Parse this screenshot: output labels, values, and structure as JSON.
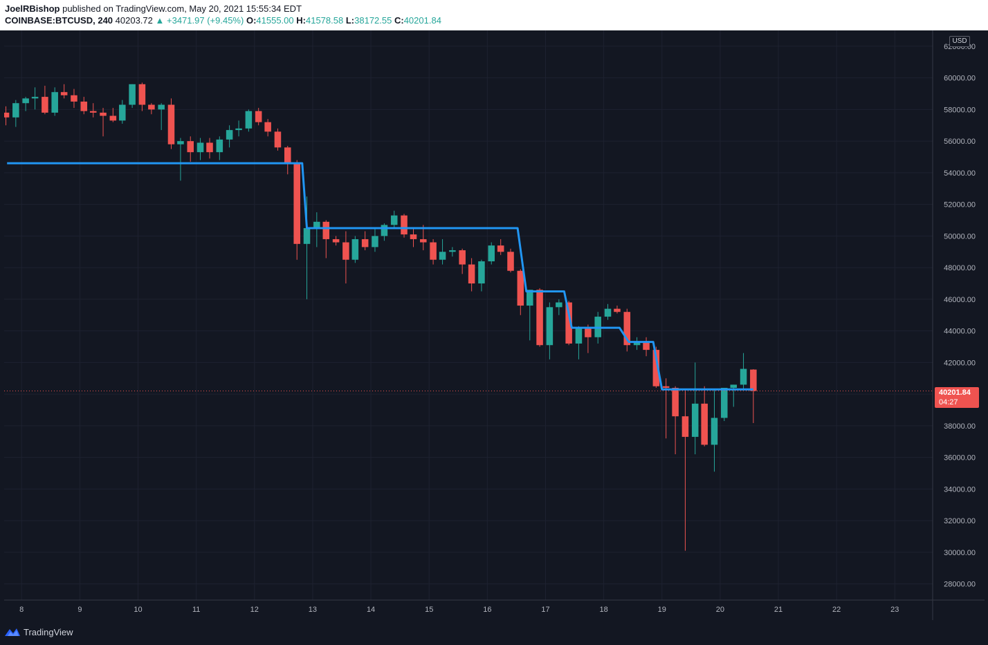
{
  "header": {
    "author": "JoelRBishop",
    "published_text": "published on TradingView.com, May 20, 2021 15:55:34 EDT",
    "symbol": "COINBASE:BTCUSD, 240",
    "last": "40203.72",
    "change": "+3471.97 (+9.45%)",
    "o_label": "O:",
    "o_value": "41555.00",
    "h_label": "H:",
    "h_value": "41578.58",
    "l_label": "L:",
    "l_value": "38172.55",
    "c_label": "C:",
    "c_value": "40201.84"
  },
  "axis": {
    "currency": "USD"
  },
  "price_tag": {
    "price": "40201.84",
    "countdown": "04:27"
  },
  "footer": {
    "brand": "TradingView"
  },
  "colors": {
    "background": "#131722",
    "grid": "#1e2230",
    "up": "#26a69a",
    "down": "#ef5350",
    "line": "#2196f3",
    "axis_text": "#b2b5be"
  },
  "chart_data": {
    "type": "candlestick",
    "title": "",
    "xlabel": "",
    "ylabel": "",
    "ylim": [
      26980,
      63000
    ],
    "y_ticks": [
      28000,
      30000,
      32000,
      34000,
      36000,
      38000,
      40000,
      42000,
      44000,
      46000,
      48000,
      50000,
      52000,
      54000,
      56000,
      58000,
      60000,
      62000
    ],
    "y_tick_labels": [
      "28000.00",
      "30000.00",
      "32000.00",
      "34000.00",
      "36000.00",
      "38000.00",
      "40000.00",
      "42000.00",
      "44000.00",
      "46000.00",
      "48000.00",
      "50000.00",
      "52000.00",
      "54000.00",
      "56000.00",
      "58000.00",
      "60000.00",
      "62000.00"
    ],
    "x_range_days": [
      7.7,
      23.65
    ],
    "x_ticks": [
      8,
      9,
      10,
      11,
      12,
      13,
      14,
      15,
      16,
      17,
      18,
      19,
      20,
      21,
      22,
      23
    ],
    "x_tick_labels": [
      "8",
      "9",
      "10",
      "11",
      "12",
      "13",
      "14",
      "15",
      "16",
      "17",
      "18",
      "19",
      "20",
      "21",
      "22",
      "23"
    ],
    "candle_interval_days": 0.1667,
    "candles": [
      [
        7.73,
        57800,
        58200,
        57000,
        57500
      ],
      [
        7.9,
        57500,
        58600,
        56900,
        58400
      ],
      [
        8.07,
        58400,
        58800,
        57900,
        58700
      ],
      [
        8.23,
        58700,
        59400,
        58000,
        58800
      ],
      [
        8.4,
        58800,
        59500,
        57700,
        57800
      ],
      [
        8.57,
        57800,
        59400,
        57600,
        59100
      ],
      [
        8.73,
        59100,
        59600,
        58700,
        58900
      ],
      [
        8.9,
        58900,
        59300,
        58100,
        58500
      ],
      [
        9.07,
        58500,
        58800,
        57700,
        57900
      ],
      [
        9.23,
        57900,
        58400,
        57500,
        57800
      ],
      [
        9.4,
        57800,
        58100,
        56300,
        57600
      ],
      [
        9.57,
        57600,
        58100,
        57200,
        57300
      ],
      [
        9.73,
        57300,
        58600,
        57100,
        58300
      ],
      [
        9.9,
        58300,
        59600,
        58100,
        59600
      ],
      [
        10.07,
        59600,
        59700,
        57900,
        58300
      ],
      [
        10.23,
        58300,
        58400,
        57700,
        58000
      ],
      [
        10.4,
        58000,
        58400,
        56700,
        58300
      ],
      [
        10.57,
        58300,
        58700,
        55500,
        55800
      ],
      [
        10.73,
        55800,
        56200,
        53500,
        56000
      ],
      [
        10.9,
        56000,
        56300,
        54700,
        55300
      ],
      [
        11.07,
        55300,
        56200,
        54800,
        55900
      ],
      [
        11.23,
        55900,
        56200,
        54900,
        55300
      ],
      [
        11.4,
        55300,
        56300,
        54800,
        56100
      ],
      [
        11.57,
        56100,
        57000,
        55600,
        56700
      ],
      [
        11.73,
        56700,
        57300,
        56300,
        56800
      ],
      [
        11.9,
        56800,
        58000,
        56600,
        57900
      ],
      [
        12.07,
        57900,
        58100,
        57000,
        57200
      ],
      [
        12.23,
        57200,
        57400,
        56300,
        56600
      ],
      [
        12.4,
        56600,
        56800,
        55400,
        55600
      ],
      [
        12.57,
        55600,
        55700,
        53900,
        54600
      ],
      [
        12.73,
        54600,
        54800,
        48500,
        49500
      ],
      [
        12.9,
        49500,
        52500,
        46000,
        50500
      ],
      [
        13.07,
        50500,
        51500,
        49300,
        50900
      ],
      [
        13.23,
        50900,
        51000,
        48600,
        49800
      ],
      [
        13.4,
        49800,
        50000,
        49400,
        49600
      ],
      [
        13.57,
        49600,
        50300,
        47000,
        48500
      ],
      [
        13.73,
        48500,
        50000,
        48300,
        49800
      ],
      [
        13.9,
        49800,
        50300,
        49100,
        49300
      ],
      [
        14.07,
        49300,
        50500,
        49000,
        50000
      ],
      [
        14.23,
        50000,
        50800,
        49700,
        50700
      ],
      [
        14.4,
        50700,
        51600,
        50500,
        51300
      ],
      [
        14.57,
        51300,
        51400,
        49900,
        50100
      ],
      [
        14.73,
        50100,
        50500,
        49300,
        49800
      ],
      [
        14.9,
        49800,
        50700,
        49100,
        49600
      ],
      [
        15.07,
        49600,
        49800,
        48200,
        48500
      ],
      [
        15.23,
        48500,
        49800,
        48200,
        49000
      ],
      [
        15.4,
        49000,
        49300,
        48700,
        49100
      ],
      [
        15.57,
        49100,
        49200,
        47600,
        48200
      ],
      [
        15.73,
        48200,
        48600,
        46500,
        47000
      ],
      [
        15.9,
        47000,
        48500,
        46500,
        48400
      ],
      [
        16.07,
        48400,
        49600,
        48200,
        49400
      ],
      [
        16.23,
        49400,
        49800,
        48800,
        49000
      ],
      [
        16.4,
        49000,
        49200,
        47700,
        47800
      ],
      [
        16.57,
        47800,
        47900,
        45000,
        45600
      ],
      [
        16.73,
        45600,
        46600,
        43400,
        46600
      ],
      [
        16.9,
        46600,
        46700,
        43000,
        43100
      ],
      [
        17.07,
        43100,
        45800,
        42200,
        45500
      ],
      [
        17.23,
        45500,
        46000,
        45000,
        45800
      ],
      [
        17.4,
        45800,
        45900,
        43100,
        43200
      ],
      [
        17.57,
        43200,
        44300,
        42200,
        44200
      ],
      [
        17.73,
        44200,
        44400,
        42600,
        43600
      ],
      [
        17.9,
        43600,
        45200,
        43200,
        44900
      ],
      [
        18.07,
        44900,
        45700,
        44700,
        45400
      ],
      [
        18.23,
        45400,
        45600,
        45100,
        45200
      ],
      [
        18.4,
        45200,
        45400,
        42700,
        43100
      ],
      [
        18.57,
        43100,
        43600,
        42800,
        43300
      ],
      [
        18.73,
        43300,
        43600,
        42400,
        42800
      ],
      [
        18.9,
        42800,
        43000,
        40400,
        40500
      ],
      [
        19.07,
        40500,
        41000,
        37200,
        40400
      ],
      [
        19.23,
        40400,
        40500,
        36200,
        38600
      ],
      [
        19.4,
        38600,
        40300,
        30100,
        37300
      ],
      [
        19.57,
        37300,
        42000,
        36200,
        39400
      ],
      [
        19.73,
        39400,
        40500,
        36700,
        36800
      ],
      [
        19.9,
        36800,
        40300,
        35100,
        38500
      ],
      [
        20.07,
        38500,
        40400,
        38300,
        40400
      ],
      [
        20.23,
        40400,
        40600,
        39200,
        40600
      ],
      [
        20.4,
        40600,
        42600,
        40300,
        41600
      ],
      [
        20.57,
        41555,
        41578.58,
        38172.55,
        40201.84
      ]
    ],
    "line_series": [
      [
        7.75,
        54600
      ],
      [
        12.82,
        54600
      ],
      [
        12.9,
        50500
      ],
      [
        16.52,
        50500
      ],
      [
        16.67,
        46500
      ],
      [
        17.32,
        46500
      ],
      [
        17.45,
        44200
      ],
      [
        18.27,
        44200
      ],
      [
        18.43,
        43300
      ],
      [
        18.85,
        43300
      ],
      [
        19.0,
        40300
      ],
      [
        20.57,
        40300
      ]
    ],
    "current_price": 40201.84,
    "grid": true,
    "legend": "none"
  }
}
